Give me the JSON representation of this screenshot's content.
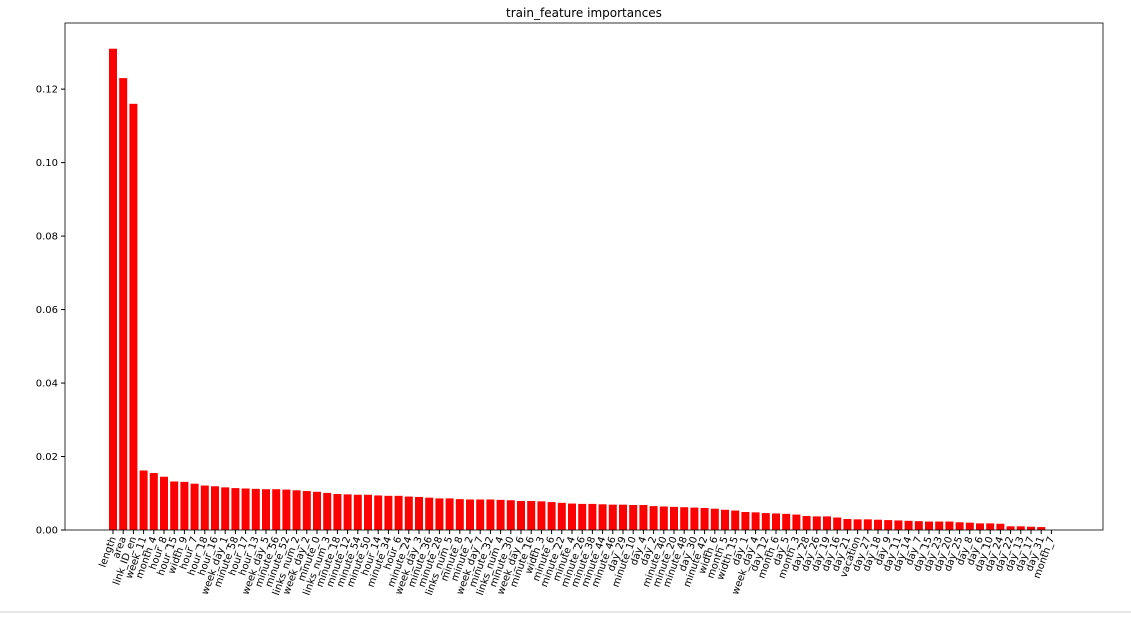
{
  "chart_data": {
    "type": "bar",
    "title": "train_feature importances",
    "color": "#ff0000",
    "categories": [
      "length",
      "area",
      "link_ID_en",
      "week_11",
      "month_4",
      "hour_8",
      "hour_15",
      "width_9",
      "hour_7",
      "hour_18",
      "hour_16",
      "week_day_1",
      "minute_58",
      "hour_17",
      "hour_13",
      "week_day_5",
      "minute_56",
      "minute_52",
      "links_num_2",
      "week_day_2",
      "minute_0",
      "links_num_3",
      "minute_18",
      "minute_12",
      "minute_54",
      "minute_50",
      "hour_14",
      "minute_34",
      "hour_6",
      "minute_24",
      "week_day_3",
      "minute_36",
      "minute_28",
      "links_num_5",
      "minute_8",
      "minute_2",
      "week_day_7",
      "minute_32",
      "links_num_4",
      "minute_30",
      "week_day_6",
      "minute_16",
      "width_3",
      "minute_6",
      "minute_22",
      "minute_4",
      "minute_26",
      "minute_38",
      "minute_44",
      "minute_46",
      "day_29",
      "minute_10",
      "day_4",
      "day_2",
      "minute_40",
      "minute_20",
      "minute_48",
      "day_30",
      "minute_42",
      "width_6",
      "month_5",
      "width_15",
      "day_1",
      "week_day_4",
      "day_12",
      "month_6",
      "day_5",
      "month_3",
      "day_28",
      "day_26",
      "day_19",
      "day_16",
      "day_21",
      "vacation",
      "day_27",
      "day_18",
      "day_9",
      "day_11",
      "day_14",
      "day_7",
      "day_15",
      "day_23",
      "day_20",
      "day_25",
      "day_8",
      "day_6",
      "day_10",
      "day_24",
      "day_22",
      "day_13",
      "day_17",
      "day_31",
      "month_7"
    ],
    "values": [
      0.131,
      0.123,
      0.116,
      0.0162,
      0.0155,
      0.0145,
      0.0132,
      0.0131,
      0.0126,
      0.0121,
      0.0119,
      0.0116,
      0.0114,
      0.0113,
      0.0112,
      0.0111,
      0.0111,
      0.011,
      0.0108,
      0.0106,
      0.0104,
      0.0101,
      0.0098,
      0.0097,
      0.0096,
      0.0096,
      0.0094,
      0.0093,
      0.0093,
      0.0091,
      0.009,
      0.0088,
      0.0086,
      0.0086,
      0.0084,
      0.0083,
      0.0083,
      0.0083,
      0.0082,
      0.0081,
      0.0079,
      0.0079,
      0.0078,
      0.0076,
      0.0074,
      0.0072,
      0.0071,
      0.0071,
      0.007,
      0.0069,
      0.0069,
      0.0068,
      0.0068,
      0.0065,
      0.0064,
      0.0063,
      0.0062,
      0.0061,
      0.006,
      0.0058,
      0.0055,
      0.0053,
      0.0049,
      0.0048,
      0.0046,
      0.0045,
      0.0044,
      0.0042,
      0.0038,
      0.0037,
      0.0037,
      0.0034,
      0.003,
      0.0029,
      0.0029,
      0.0028,
      0.0027,
      0.0026,
      0.0025,
      0.0024,
      0.0023,
      0.0023,
      0.0023,
      0.0021,
      0.002,
      0.0018,
      0.0018,
      0.0017,
      0.001,
      0.001,
      0.0009,
      0.0008,
      0
    ],
    "ylim": [
      0,
      0.138
    ],
    "yticks": [
      {
        "value": 0,
        "label": "0.00"
      },
      {
        "value": 0.02,
        "label": "0.02"
      },
      {
        "value": 0.04,
        "label": "0.04"
      },
      {
        "value": 0.06,
        "label": "0.06"
      },
      {
        "value": 0.08,
        "label": "0.08"
      },
      {
        "value": 0.1,
        "label": "0.10"
      },
      {
        "value": 0.12,
        "label": "0.12"
      }
    ]
  }
}
